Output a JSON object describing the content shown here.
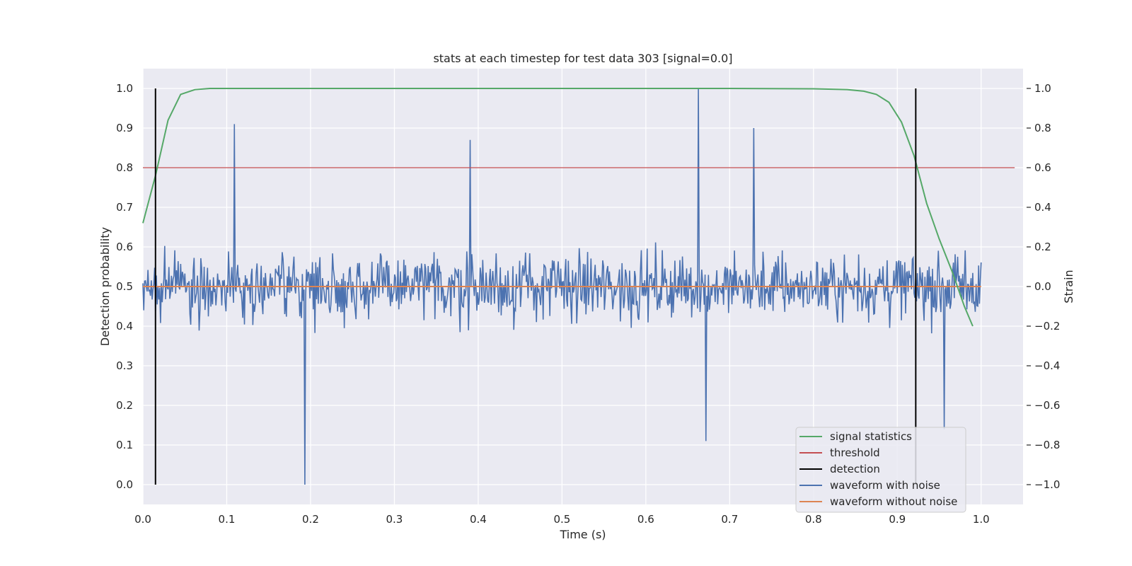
{
  "chart_data": {
    "type": "line",
    "title": "stats at each timestep for test data 303 [signal=0.0]",
    "xlabel": "Time (s)",
    "ylabel": "Detection probability",
    "y2label": "Strain",
    "xlim": [
      0.0,
      1.05
    ],
    "ylim": [
      -0.05,
      1.05
    ],
    "y2lim": [
      -1.1,
      1.1
    ],
    "xticks": [
      "0.0",
      "0.1",
      "0.2",
      "0.3",
      "0.4",
      "0.5",
      "0.6",
      "0.7",
      "0.8",
      "0.9",
      "1.0"
    ],
    "yticks": [
      "0.0",
      "0.1",
      "0.2",
      "0.3",
      "0.4",
      "0.5",
      "0.6",
      "0.7",
      "0.8",
      "0.9",
      "1.0"
    ],
    "y2ticks": [
      "−1.0",
      "−0.8",
      "−0.6",
      "−0.4",
      "−0.2",
      "0.0",
      "0.2",
      "0.4",
      "0.6",
      "0.8",
      "1.0"
    ],
    "grid": true,
    "legend_position": "lower-right",
    "colors": {
      "background": "#eaeaf2",
      "grid": "#ffffff",
      "signal_statistics": "#55a868",
      "threshold": "#c44e52",
      "detection": "#000000",
      "waveform_with_noise": "#4c72b0",
      "waveform_without_noise": "#dd8452"
    },
    "legend": [
      {
        "label": "signal statistics",
        "color": "#55a868"
      },
      {
        "label": "threshold",
        "color": "#c44e52"
      },
      {
        "label": "detection",
        "color": "#000000"
      },
      {
        "label": "waveform with noise",
        "color": "#4c72b0"
      },
      {
        "label": "waveform without noise",
        "color": "#dd8452"
      }
    ],
    "series": [
      {
        "name": "signal statistics",
        "axis": "left",
        "x": [
          0.0,
          0.015,
          0.03,
          0.045,
          0.062,
          0.08,
          0.15,
          0.3,
          0.5,
          0.7,
          0.8,
          0.84,
          0.86,
          0.875,
          0.89,
          0.905,
          0.92,
          0.935,
          0.95,
          0.965,
          0.98,
          0.99
        ],
        "y": [
          0.66,
          0.78,
          0.92,
          0.985,
          0.997,
          1.0,
          1.0,
          1.0,
          1.0,
          1.0,
          0.999,
          0.997,
          0.993,
          0.985,
          0.965,
          0.915,
          0.83,
          0.71,
          0.62,
          0.54,
          0.45,
          0.4
        ]
      },
      {
        "name": "threshold",
        "axis": "left",
        "x": [
          0.0,
          1.04
        ],
        "y": [
          0.8,
          0.8
        ]
      },
      {
        "name": "detection",
        "axis": "left",
        "segments": [
          {
            "x": 0.015,
            "y": [
              0.0,
              1.0
            ]
          },
          {
            "x": 0.922,
            "y": [
              0.0,
              1.0
            ]
          }
        ]
      },
      {
        "name": "waveform with noise",
        "axis": "right",
        "n_points": 1000,
        "x_range": [
          0.0,
          1.0
        ],
        "y_range": [
          -1.0,
          1.0
        ],
        "peaks": [
          {
            "x": 0.109,
            "y": 0.82
          },
          {
            "x": 0.193,
            "y": -1.0
          },
          {
            "x": 0.39,
            "y": 0.74
          },
          {
            "x": 0.663,
            "y": 1.0
          },
          {
            "x": 0.672,
            "y": -0.78
          },
          {
            "x": 0.729,
            "y": 0.8
          },
          {
            "x": 0.956,
            "y": -0.72
          }
        ],
        "typical_amplitude": 0.3
      },
      {
        "name": "waveform without noise",
        "axis": "right",
        "x": [
          0.0,
          1.0
        ],
        "y": [
          0.0,
          0.0
        ]
      }
    ]
  }
}
